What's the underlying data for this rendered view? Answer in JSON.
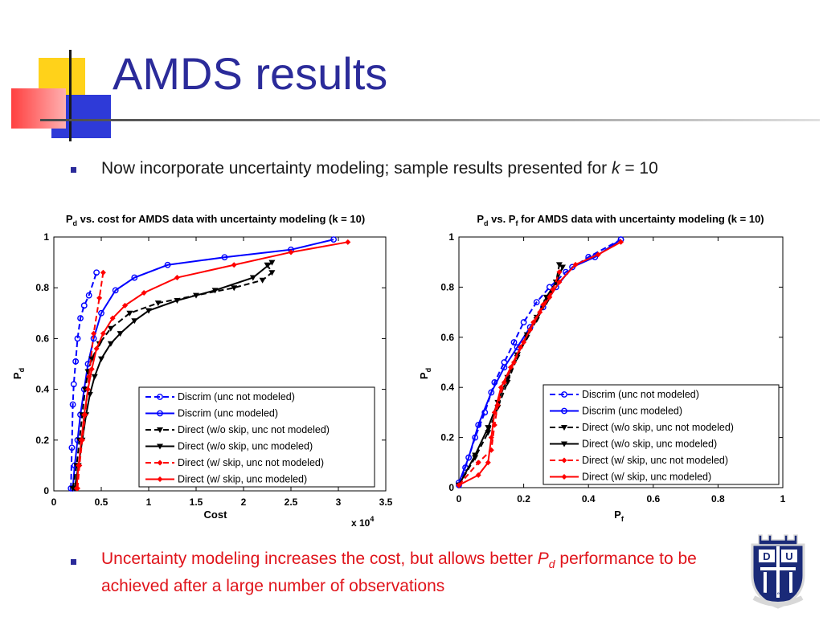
{
  "slide": {
    "title": "AMDS results",
    "bullet1": {
      "pre": "Now incorporate uncertainty modeling; sample results presented for ",
      "italic": "k",
      "post": " = 10"
    },
    "bullet2": {
      "pre": "Uncertainty modeling increases the cost, but allows better ",
      "italic": "P",
      "sub": "d",
      "post": " performance to be achieved after a large number of observations"
    },
    "logo_text": "Eruditio et Religio"
  },
  "chart_data": [
    {
      "type": "line",
      "title": {
        "p": "P",
        "sub": "d",
        "rest": " vs. cost for AMDS data with uncertainty modeling (k = 10)"
      },
      "xlabel": "Cost",
      "x_multiplier": {
        "base": "x 10",
        "exp": "4"
      },
      "ylabel": {
        "p": "P",
        "sub": "d"
      },
      "xlim": [
        0,
        3.5
      ],
      "ylim": [
        0,
        1
      ],
      "xticks": [
        "0",
        "0.5",
        "1",
        "1.5",
        "2",
        "2.5",
        "3",
        "3.5"
      ],
      "yticks": [
        "0",
        "0.2",
        "0.4",
        "0.6",
        "0.8",
        "1"
      ],
      "legend_position": "bottom-right",
      "series": [
        {
          "name": "Discrim (unc not modeled)",
          "color": "#0000ff",
          "dashed": true,
          "marker": "circle",
          "x": [
            0.18,
            0.19,
            0.2,
            0.21,
            0.23,
            0.25,
            0.28,
            0.32,
            0.37,
            0.45
          ],
          "y": [
            0.01,
            0.17,
            0.34,
            0.42,
            0.51,
            0.6,
            0.68,
            0.73,
            0.77,
            0.86
          ]
        },
        {
          "name": "Discrim (unc modeled)",
          "color": "#0000ff",
          "dashed": false,
          "marker": "circle",
          "x": [
            0.2,
            0.22,
            0.25,
            0.28,
            0.32,
            0.36,
            0.42,
            0.5,
            0.65,
            0.85,
            1.2,
            1.8,
            2.5,
            2.95
          ],
          "y": [
            0.01,
            0.1,
            0.2,
            0.3,
            0.4,
            0.5,
            0.6,
            0.7,
            0.79,
            0.84,
            0.89,
            0.92,
            0.95,
            0.99
          ]
        },
        {
          "name": "Direct (w/o skip, unc not modeled)",
          "color": "#000000",
          "dashed": true,
          "marker": "triangle",
          "x": [
            0.2,
            0.24,
            0.27,
            0.3,
            0.33,
            0.36,
            0.4,
            0.48,
            0.6,
            0.8,
            1.1,
            1.5,
            1.9,
            2.2,
            2.3,
            2.25
          ],
          "y": [
            0.01,
            0.1,
            0.2,
            0.3,
            0.4,
            0.47,
            0.52,
            0.58,
            0.64,
            0.7,
            0.74,
            0.77,
            0.8,
            0.83,
            0.86,
            0.89
          ]
        },
        {
          "name": "Direct (w/o skip, unc modeled)",
          "color": "#000000",
          "dashed": false,
          "marker": "triangle",
          "x": [
            0.22,
            0.26,
            0.3,
            0.34,
            0.38,
            0.43,
            0.5,
            0.6,
            0.7,
            0.85,
            1.0,
            1.3,
            1.7,
            2.1,
            2.3
          ],
          "y": [
            0.01,
            0.1,
            0.2,
            0.3,
            0.38,
            0.45,
            0.52,
            0.58,
            0.62,
            0.67,
            0.71,
            0.75,
            0.79,
            0.84,
            0.9
          ]
        },
        {
          "name": "Direct (w/ skip, unc not modeled)",
          "color": "#ff0000",
          "dashed": true,
          "marker": "diamond",
          "x": [
            0.25,
            0.27,
            0.3,
            0.33,
            0.37,
            0.42,
            0.48,
            0.52
          ],
          "y": [
            0.01,
            0.1,
            0.2,
            0.3,
            0.45,
            0.62,
            0.76,
            0.86
          ]
        },
        {
          "name": "Direct (w/ skip, unc modeled)",
          "color": "#ff0000",
          "dashed": false,
          "marker": "diamond",
          "x": [
            0.24,
            0.26,
            0.29,
            0.32,
            0.36,
            0.4,
            0.45,
            0.52,
            0.62,
            0.75,
            0.95,
            1.3,
            1.9,
            2.5,
            3.1
          ],
          "y": [
            0.01,
            0.1,
            0.2,
            0.3,
            0.4,
            0.48,
            0.56,
            0.62,
            0.68,
            0.73,
            0.78,
            0.84,
            0.89,
            0.94,
            0.98
          ]
        }
      ]
    },
    {
      "type": "line",
      "title": {
        "p": "P",
        "sub": "d",
        "rest": " vs. P",
        "sub2": "f",
        "rest2": " for AMDS data with uncertainty modeling (k = 10)"
      },
      "xlabel": {
        "p": "P",
        "sub": "f"
      },
      "ylabel": {
        "p": "P",
        "sub": "d"
      },
      "xlim": [
        0,
        1
      ],
      "ylim": [
        0,
        1
      ],
      "xticks": [
        "0",
        "0.2",
        "0.4",
        "0.6",
        "0.8",
        "1"
      ],
      "yticks": [
        "0",
        "0.2",
        "0.4",
        "0.6",
        "0.8",
        "1"
      ],
      "legend_position": "bottom-right",
      "series": [
        {
          "name": "Discrim (unc not modeled)",
          "color": "#0000ff",
          "dashed": true,
          "marker": "circle",
          "x": [
            0.0,
            0.02,
            0.05,
            0.08,
            0.11,
            0.14,
            0.17,
            0.2,
            0.24,
            0.28,
            0.33,
            0.4,
            0.5
          ],
          "y": [
            0.01,
            0.08,
            0.2,
            0.3,
            0.42,
            0.5,
            0.58,
            0.66,
            0.74,
            0.8,
            0.86,
            0.92,
            0.99
          ]
        },
        {
          "name": "Discrim (unc modeled)",
          "color": "#0000ff",
          "dashed": false,
          "marker": "circle",
          "x": [
            0.0,
            0.03,
            0.06,
            0.1,
            0.14,
            0.18,
            0.22,
            0.26,
            0.3,
            0.35,
            0.42,
            0.5
          ],
          "y": [
            0.02,
            0.12,
            0.25,
            0.38,
            0.48,
            0.56,
            0.64,
            0.72,
            0.8,
            0.88,
            0.92,
            0.99
          ]
        },
        {
          "name": "Direct (w/o skip, unc not modeled)",
          "color": "#000000",
          "dashed": true,
          "marker": "triangle",
          "x": [
            0.0,
            0.05,
            0.09,
            0.12,
            0.15,
            0.18,
            0.21,
            0.24,
            0.27,
            0.3,
            0.31
          ],
          "y": [
            0.01,
            0.12,
            0.22,
            0.32,
            0.42,
            0.52,
            0.6,
            0.67,
            0.74,
            0.82,
            0.89
          ]
        },
        {
          "name": "Direct (w/o skip, unc modeled)",
          "color": "#000000",
          "dashed": false,
          "marker": "triangle",
          "x": [
            0.0,
            0.05,
            0.09,
            0.12,
            0.15,
            0.18,
            0.21,
            0.24,
            0.27,
            0.3,
            0.32
          ],
          "y": [
            0.01,
            0.13,
            0.24,
            0.34,
            0.44,
            0.53,
            0.61,
            0.68,
            0.76,
            0.82,
            0.88
          ]
        },
        {
          "name": "Direct (w/ skip, unc not modeled)",
          "color": "#ff0000",
          "dashed": true,
          "marker": "diamond",
          "x": [
            0.0,
            0.06,
            0.1,
            0.11,
            0.12,
            0.14,
            0.17,
            0.2,
            0.23,
            0.26,
            0.29,
            0.31
          ],
          "y": [
            0.01,
            0.1,
            0.15,
            0.25,
            0.33,
            0.42,
            0.5,
            0.58,
            0.66,
            0.73,
            0.79,
            0.86
          ]
        },
        {
          "name": "Direct (w/ skip, unc modeled)",
          "color": "#ff0000",
          "dashed": false,
          "marker": "diamond",
          "x": [
            0.0,
            0.06,
            0.09,
            0.1,
            0.11,
            0.13,
            0.16,
            0.19,
            0.22,
            0.25,
            0.28,
            0.31,
            0.36,
            0.43,
            0.5
          ],
          "y": [
            0.01,
            0.05,
            0.1,
            0.2,
            0.3,
            0.4,
            0.48,
            0.56,
            0.63,
            0.7,
            0.76,
            0.82,
            0.89,
            0.93,
            0.98
          ]
        }
      ]
    }
  ]
}
